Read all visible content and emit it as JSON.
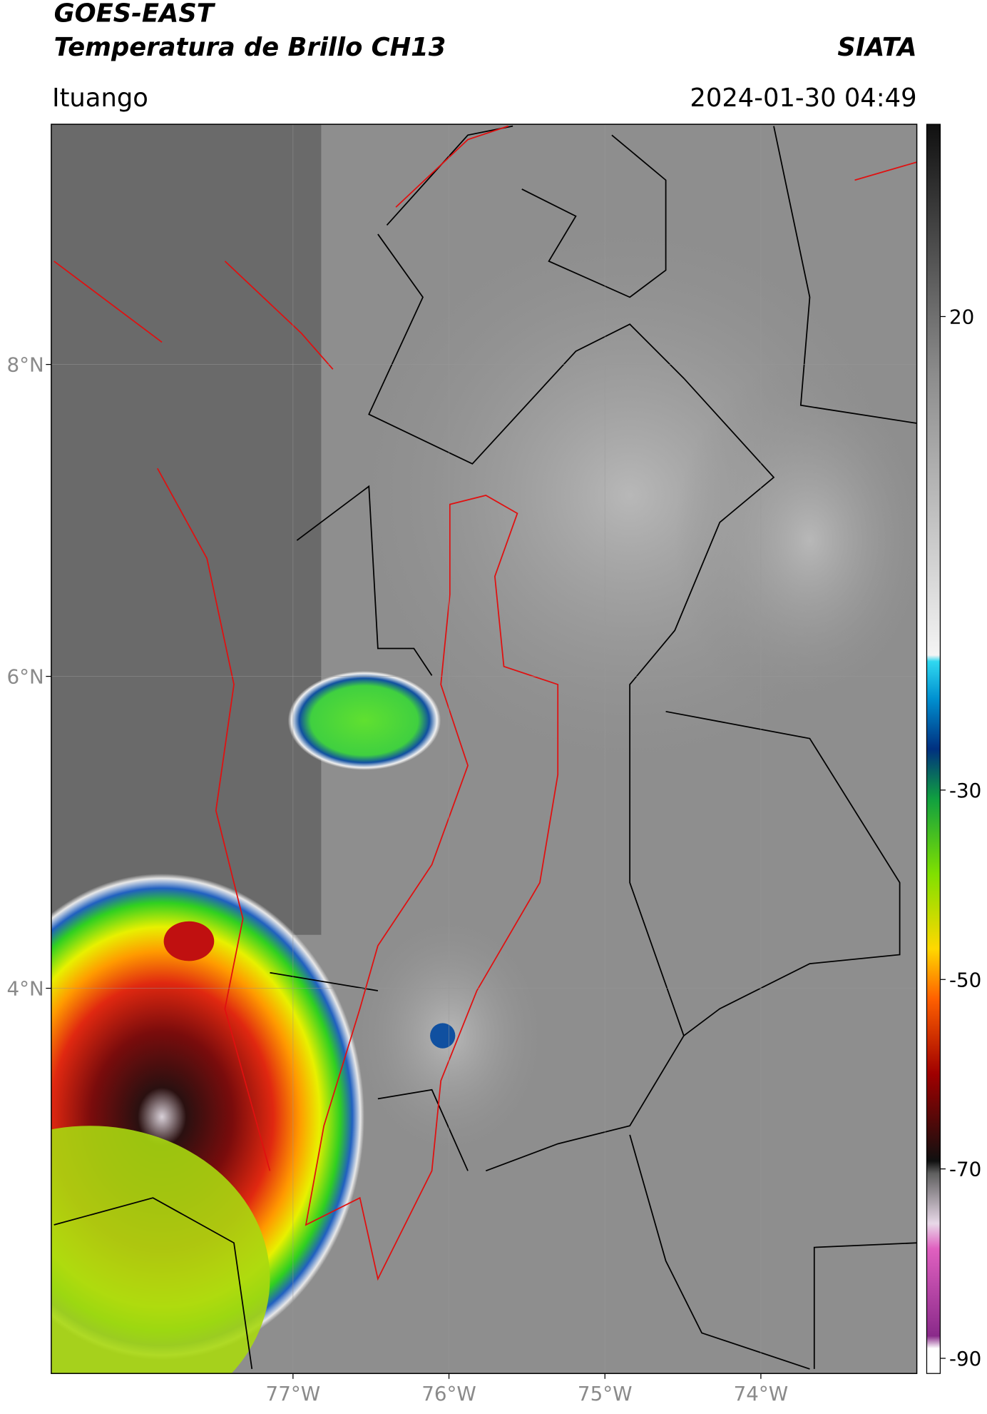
{
  "header": {
    "title": "GOES-EAST",
    "subtitle": "Temperatura de Brillo CH13",
    "brand": "SIATA",
    "location": "Ituango",
    "datetime": "2024-01-30 04:49"
  },
  "map": {
    "latlim": [
      1.53,
      9.54
    ],
    "lonlim": [
      -78.55,
      -73.0
    ],
    "lat_ticks": [
      {
        "value": 8,
        "label": "8°N"
      },
      {
        "value": 6,
        "label": "6°N"
      },
      {
        "value": 4,
        "label": "4°N"
      }
    ],
    "lon_ticks": [
      {
        "value": -77,
        "label": "77°W"
      },
      {
        "value": -76,
        "label": "76°W"
      },
      {
        "value": -75,
        "label": "75°W"
      },
      {
        "value": -74,
        "label": "74°W"
      }
    ]
  },
  "colorbar": {
    "lim": [
      -91.6,
      40.3
    ],
    "ticks": [
      20,
      -30,
      -50,
      -70,
      -90
    ]
  }
}
